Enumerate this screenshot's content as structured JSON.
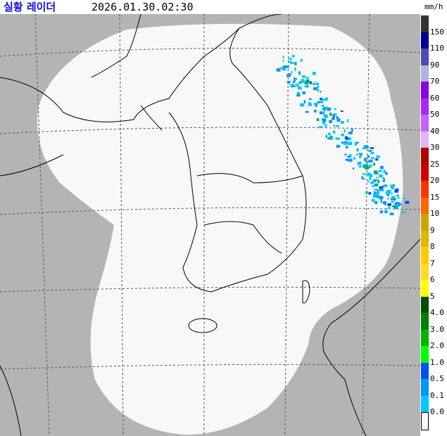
{
  "header": {
    "title": "실황 레이더",
    "datetime": "2026.01.30.02:30",
    "unit": "mm/h"
  },
  "colors": {
    "background_outside": "#b4b4b4",
    "radar_coverage": "#f8f8f8",
    "title": "#1010e0"
  },
  "legend": {
    "labels": [
      "150",
      "110",
      "90",
      "70",
      "60",
      "50",
      "40",
      "30",
      "25",
      "20",
      "15",
      "10",
      "9",
      "8",
      "7",
      "6",
      "5",
      "4.0",
      "3.0",
      "2.0",
      "1.0",
      "0.5",
      "0.1",
      "0.0"
    ],
    "colors": [
      "#333333",
      "#000090",
      "#4c4cb4",
      "#b0b4dc",
      "#8c00e0",
      "#a828f4",
      "#c464f4",
      "#e0b4f8",
      "#b00000",
      "#d20000",
      "#ff3200",
      "#ff6600",
      "#c8a800",
      "#e0b800",
      "#ffcc00",
      "#ffdc28",
      "#ffff00",
      "#005000",
      "#008000",
      "#00b400",
      "#00ff00",
      "#0050f0",
      "#0098f0",
      "#00c8ff",
      "#f8f8f8"
    ]
  }
}
